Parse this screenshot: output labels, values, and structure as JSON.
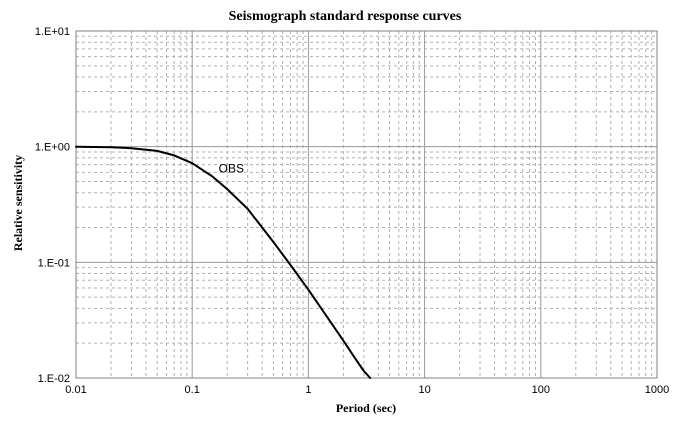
{
  "chart_data": {
    "type": "line",
    "title": "Seismograph standard response curves",
    "xlabel": "Period (sec)",
    "ylabel": "Relative sensitivity",
    "xscale": "log",
    "yscale": "log",
    "xlim": [
      0.01,
      1000
    ],
    "ylim": [
      0.01,
      10
    ],
    "x_tick_labels": [
      "0.01",
      "0.1",
      "1",
      "10",
      "100",
      "1000"
    ],
    "y_tick_labels": [
      "1.E+01",
      "1.E+00",
      "1.E-01",
      "1.E-02"
    ],
    "grid": true,
    "series": [
      {
        "name": "OBS",
        "color": "#000000",
        "points": [
          [
            0.01,
            1.0
          ],
          [
            0.02,
            0.99
          ],
          [
            0.03,
            0.97
          ],
          [
            0.05,
            0.92
          ],
          [
            0.07,
            0.84
          ],
          [
            0.1,
            0.72
          ],
          [
            0.15,
            0.55
          ],
          [
            0.2,
            0.43
          ],
          [
            0.3,
            0.29
          ],
          [
            0.5,
            0.15
          ],
          [
            0.7,
            0.095
          ],
          [
            1.0,
            0.058
          ],
          [
            1.5,
            0.032
          ],
          [
            2.0,
            0.021
          ],
          [
            2.5,
            0.015
          ],
          [
            3.0,
            0.0115
          ],
          [
            3.4,
            0.01
          ]
        ]
      }
    ]
  }
}
